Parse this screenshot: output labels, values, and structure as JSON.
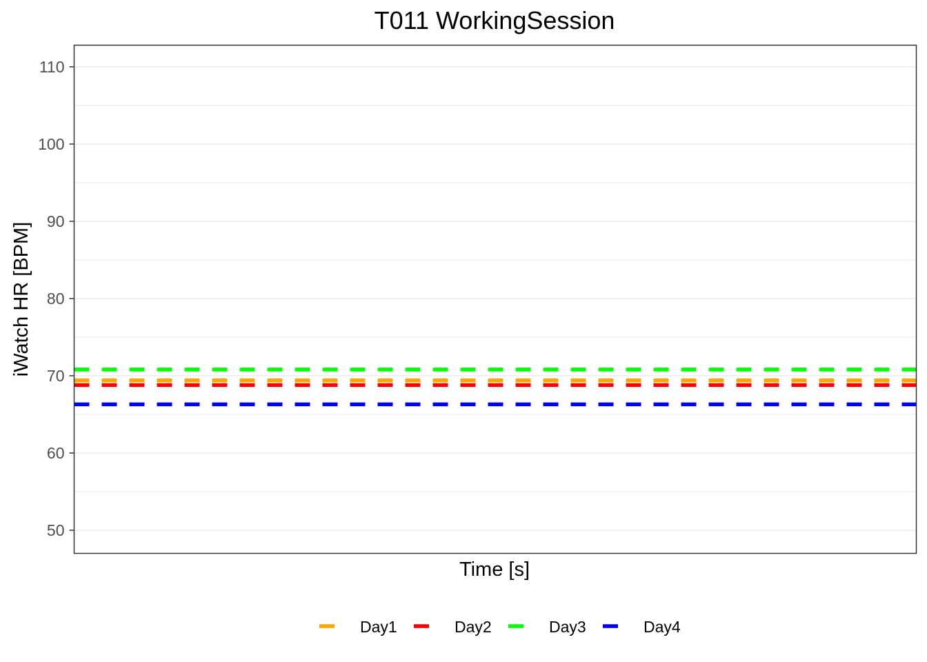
{
  "chart_data": {
    "type": "line",
    "title": "T011 WorkingSession",
    "xlabel": "Time [s]",
    "ylabel": "iWatch HR [BPM]",
    "ylim": [
      47,
      112.8
    ],
    "yticks": [
      50,
      60,
      70,
      80,
      90,
      100,
      110
    ],
    "ytick_labels": [
      "50",
      "60",
      "70",
      "80",
      "90",
      "100",
      "110"
    ],
    "grid": true,
    "legend_position": "bottom",
    "series": [
      {
        "name": "Day1",
        "color": "#FFA500",
        "line_style": "dashed",
        "value": 69.4
      },
      {
        "name": "Day2",
        "color": "#FF0000",
        "line_style": "dashed",
        "value": 68.8
      },
      {
        "name": "Day3",
        "color": "#00FF00",
        "line_style": "dashed",
        "value": 70.8
      },
      {
        "name": "Day4",
        "color": "#0000FF",
        "line_style": "dashed",
        "value": 66.3
      }
    ]
  }
}
